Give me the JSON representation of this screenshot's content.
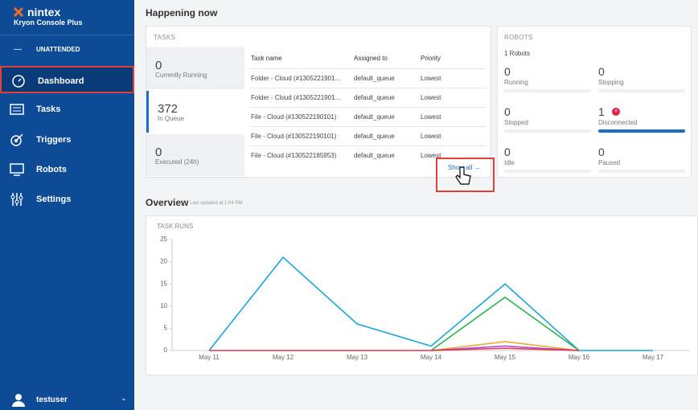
{
  "sidebar": {
    "brand": "nintex",
    "product": "Kryon Console Plus",
    "mode": "UNATTENDED",
    "nav": [
      "Dashboard",
      "Tasks",
      "Triggers",
      "Robots",
      "Settings"
    ],
    "user": "testuser"
  },
  "happening": {
    "title": "Happening now",
    "tasks": {
      "label": "TASKS",
      "stats": [
        {
          "value": 0,
          "label": "Currently Running"
        },
        {
          "value": 372,
          "label": "In Queue"
        },
        {
          "value": 0,
          "label": "Executed (24h)"
        }
      ],
      "columns": [
        "Task name",
        "Assigned to",
        "Priority"
      ],
      "rows": [
        [
          "Folder - Cloud (#1305221901…",
          "default_queue",
          "Lowest"
        ],
        [
          "Folder - Cloud (#1305221901…",
          "default_queue",
          "Lowest"
        ],
        [
          "File - Cloud (#130522190101)",
          "default_queue",
          "Lowest"
        ],
        [
          "File - Cloud (#130522190101)",
          "default_queue",
          "Lowest"
        ],
        [
          "File - Cloud (#130522185953)",
          "default_queue",
          "Lowest"
        ]
      ],
      "show_all": "Show all"
    },
    "robots": {
      "label": "ROBOTS",
      "count": "1 Robots",
      "stats": [
        {
          "value": 0,
          "label": "Running"
        },
        {
          "value": 0,
          "label": "Stopping"
        },
        {
          "value": 0,
          "label": "Stopped"
        },
        {
          "value": 1,
          "label": "Disconnected"
        },
        {
          "value": 0,
          "label": "Idle"
        },
        {
          "value": 0,
          "label": "Paused"
        }
      ]
    }
  },
  "overview": {
    "title": "Overview",
    "updated": "Last updated at 1:04 PM"
  },
  "chart_data": {
    "type": "line",
    "title": "TASK RUNS",
    "categories": [
      "May 11",
      "May 12",
      "May 13",
      "May 14",
      "May 15",
      "May 16",
      "May 17"
    ],
    "series": [
      {
        "color": "#1aa7d9",
        "values": [
          0,
          21,
          6,
          1,
          15,
          0,
          0
        ]
      },
      {
        "color": "#2bb24c",
        "values": [
          null,
          null,
          null,
          0,
          12,
          0,
          null
        ]
      },
      {
        "color": "#f0a830",
        "values": [
          null,
          null,
          null,
          0,
          2,
          0,
          null
        ]
      },
      {
        "color": "#a64dd6",
        "values": [
          null,
          null,
          null,
          0,
          1,
          0,
          null
        ]
      },
      {
        "color": "#e8354d",
        "values": [
          0,
          0,
          0,
          0,
          0.5,
          0,
          null
        ]
      }
    ],
    "ylim": [
      0,
      25
    ],
    "yticks": [
      0,
      5,
      10,
      15,
      20,
      25
    ]
  }
}
